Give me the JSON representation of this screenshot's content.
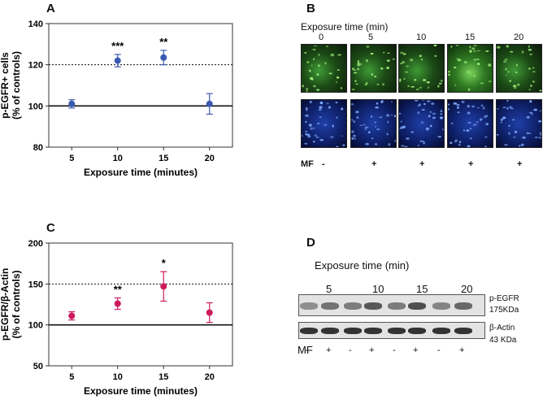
{
  "chart_data": [
    {
      "panel": "A",
      "type": "scatter",
      "ylabel": "p-EGFR+ cells\n(% of controls)",
      "ylabel_lines": [
        "p-EGFR+ cells",
        "(% of controls)"
      ],
      "xlabel": "Exposure time (minutes)",
      "categories": [
        "5",
        "10",
        "15",
        "20"
      ],
      "values": [
        101,
        122,
        123.5,
        101
      ],
      "errors": [
        2,
        3,
        3.5,
        5
      ],
      "significance": [
        "",
        "***",
        "**",
        ""
      ],
      "ylim": [
        80,
        140
      ],
      "yticks": [
        80,
        100,
        120,
        140
      ],
      "reference_lines": [
        {
          "y": 100,
          "style": "solid"
        },
        {
          "y": 120,
          "style": "dotted"
        }
      ],
      "color": "#3a5ab0"
    },
    {
      "panel": "C",
      "type": "scatter",
      "ylabel": "p-EGFR/β-Actin\n(% of controls)",
      "ylabel_lines": [
        "p-EGFR/β-Actin",
        "(% of controls)"
      ],
      "xlabel": "Exposure time (minutes)",
      "categories": [
        "5",
        "10",
        "15",
        "20"
      ],
      "values": [
        111,
        126,
        147,
        115
      ],
      "errors": [
        5,
        7,
        18,
        12
      ],
      "significance": [
        "",
        "**",
        "*",
        ""
      ],
      "ylim": [
        50,
        200
      ],
      "yticks": [
        50,
        100,
        150,
        200
      ],
      "reference_lines": [
        {
          "y": 100,
          "style": "solid"
        },
        {
          "y": 150,
          "style": "dotted"
        }
      ],
      "color": "#cc1a5c"
    }
  ],
  "panels": {
    "A": "A",
    "B": "B",
    "C": "C",
    "D": "D"
  },
  "microscopy": {
    "header": "Exposure time (min)",
    "times": [
      "0",
      "5",
      "10",
      "15",
      "20"
    ],
    "mf_label": "MF",
    "mf_values": [
      "-",
      "+",
      "+",
      "+",
      "+"
    ]
  },
  "blot": {
    "header": "Exposure time (min)",
    "times": [
      "5",
      "10",
      "15",
      "20"
    ],
    "label_pegfr": "p-EGFR",
    "label_pegfr_kda": "175KDa",
    "label_actin": "β-Actin",
    "label_actin_kda": "43 KDa",
    "mf_label": "MF",
    "mf_values": [
      "-",
      "+",
      "-",
      "+",
      "-",
      "+",
      "-",
      "+"
    ]
  }
}
